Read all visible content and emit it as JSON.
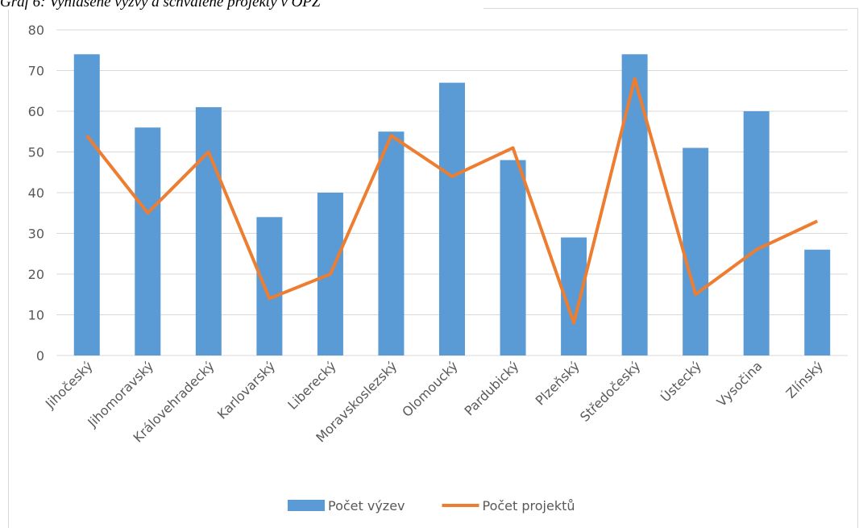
{
  "chart_data": {
    "type": "bar_line",
    "title": "Graf 6: Vyhlášené výzvy a schválené projekty v OPZ",
    "categories": [
      "Jihočeský",
      "Jihomoravský",
      "Královehradecký",
      "Karlovarský",
      "Liberecký",
      "Moravskoslezský",
      "Olomoucký",
      "Pardubický",
      "Plzeňský",
      "Středočeský",
      "Ústecký",
      "Vysočina",
      "Zlínský"
    ],
    "series": [
      {
        "name": "Počet výzev",
        "type": "bar",
        "color": "#5b9bd5",
        "values": [
          74,
          56,
          61,
          34,
          40,
          55,
          67,
          48,
          29,
          74,
          51,
          60,
          26
        ]
      },
      {
        "name": "Počet projektů",
        "type": "line",
        "color": "#ed7d31",
        "values": [
          54,
          35,
          50,
          14,
          20,
          54,
          44,
          51,
          8,
          68,
          15,
          26,
          33
        ]
      }
    ],
    "ylim": [
      0,
      80
    ],
    "yticks": [
      0,
      10,
      20,
      30,
      40,
      50,
      60,
      70,
      80
    ],
    "grid": true,
    "legend": "bottom"
  }
}
